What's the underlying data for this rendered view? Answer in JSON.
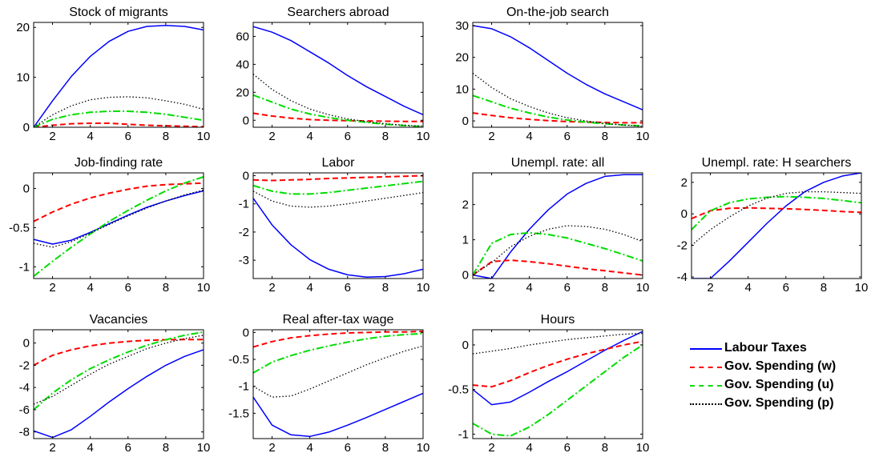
{
  "series_styles": [
    {
      "name": "Labour Taxes",
      "color": "#0000FF",
      "dash": "",
      "width": 1.5
    },
    {
      "name": "Gov. Spending (w)",
      "color": "#FF0000",
      "dash": "7,4",
      "width": 2
    },
    {
      "name": "Gov. Spending (u)",
      "color": "#00DD00",
      "dash": "9,3,2,3",
      "width": 2
    },
    {
      "name": "Gov. Spending (p)",
      "color": "#000000",
      "dash": "1.5,2.5",
      "width": 1.3
    }
  ],
  "chart_data": [
    {
      "type": "line",
      "title": "Stock of migrants",
      "x": [
        1,
        2,
        3,
        4,
        5,
        6,
        7,
        8,
        9,
        10
      ],
      "xlim": [
        1,
        10
      ],
      "ylim": [
        0,
        21
      ],
      "yticks": [
        0,
        10,
        20
      ],
      "xticks": [
        2,
        4,
        6,
        8,
        10
      ],
      "series": [
        {
          "name": "Labour Taxes",
          "values": [
            0,
            5.3,
            10.2,
            14.2,
            17.2,
            19.2,
            20.2,
            20.4,
            20.2,
            19.5
          ]
        },
        {
          "name": "Gov. Spending (w)",
          "values": [
            0,
            0.4,
            0.7,
            0.8,
            0.8,
            0.6,
            0.4,
            0.3,
            0.2,
            0.1
          ]
        },
        {
          "name": "Gov. Spending (u)",
          "values": [
            0,
            1.6,
            2.5,
            3.0,
            3.2,
            3.2,
            3.0,
            2.6,
            2.0,
            1.4
          ]
        },
        {
          "name": "Gov. Spending (p)",
          "values": [
            0,
            2.5,
            4.3,
            5.5,
            6.0,
            6.1,
            5.9,
            5.3,
            4.6,
            3.6
          ]
        }
      ]
    },
    {
      "type": "line",
      "title": "Searchers abroad",
      "x": [
        1,
        2,
        3,
        4,
        5,
        6,
        7,
        8,
        9,
        10
      ],
      "xlim": [
        1,
        10
      ],
      "ylim": [
        -5,
        70
      ],
      "yticks": [
        0,
        20,
        40,
        60
      ],
      "xticks": [
        2,
        4,
        6,
        8,
        10
      ],
      "series": [
        {
          "name": "Labour Taxes",
          "values": [
            67,
            63,
            57,
            49,
            41,
            32,
            24,
            17,
            10,
            4
          ]
        },
        {
          "name": "Gov. Spending (w)",
          "values": [
            5,
            3,
            1.5,
            0.5,
            0,
            -0.3,
            -0.5,
            -0.7,
            -0.8,
            -0.9
          ]
        },
        {
          "name": "Gov. Spending (u)",
          "values": [
            18,
            13,
            8,
            4.5,
            2,
            0,
            -1.5,
            -2.8,
            -3.8,
            -4.5
          ]
        },
        {
          "name": "Gov. Spending (p)",
          "values": [
            33,
            22,
            14,
            8,
            4,
            1,
            -1,
            -2.5,
            -3.5,
            -4.2
          ]
        }
      ]
    },
    {
      "type": "line",
      "title": "On-the-job search",
      "x": [
        1,
        2,
        3,
        4,
        5,
        6,
        7,
        8,
        9,
        10
      ],
      "xlim": [
        1,
        10
      ],
      "ylim": [
        -2,
        31
      ],
      "yticks": [
        0,
        10,
        20,
        30
      ],
      "xticks": [
        2,
        4,
        6,
        8,
        10
      ],
      "series": [
        {
          "name": "Labour Taxes",
          "values": [
            30,
            29,
            26.5,
            23,
            19,
            15,
            11.5,
            8.5,
            6,
            3.5
          ]
        },
        {
          "name": "Gov. Spending (w)",
          "values": [
            2.5,
            1.7,
            1,
            0.5,
            0.1,
            -0.2,
            -0.4,
            -0.5,
            -0.6,
            -0.6
          ]
        },
        {
          "name": "Gov. Spending (u)",
          "values": [
            8,
            6,
            4,
            2.5,
            1.2,
            0.3,
            -0.4,
            -0.9,
            -1.3,
            -1.6
          ]
        },
        {
          "name": "Gov. Spending (p)",
          "values": [
            15,
            10.5,
            7,
            4.5,
            2.5,
            1,
            0,
            -0.8,
            -1.3,
            -1.7
          ]
        }
      ]
    },
    {
      "type": "line",
      "title": "Job-finding rate",
      "x": [
        1,
        2,
        3,
        4,
        5,
        6,
        7,
        8,
        9,
        10
      ],
      "xlim": [
        1,
        10
      ],
      "ylim": [
        -1.15,
        0.2
      ],
      "yticks": [
        -1,
        -0.5,
        0
      ],
      "xticks": [
        2,
        4,
        6,
        8,
        10
      ],
      "series": [
        {
          "name": "Labour Taxes",
          "values": [
            -0.65,
            -0.71,
            -0.66,
            -0.56,
            -0.45,
            -0.34,
            -0.24,
            -0.16,
            -0.09,
            -0.03
          ]
        },
        {
          "name": "Gov. Spending (w)",
          "values": [
            -0.42,
            -0.3,
            -0.2,
            -0.12,
            -0.06,
            -0.01,
            0.03,
            0.05,
            0.06,
            0.07
          ]
        },
        {
          "name": "Gov. Spending (u)",
          "values": [
            -1.12,
            -0.93,
            -0.75,
            -0.58,
            -0.42,
            -0.28,
            -0.15,
            -0.03,
            0.07,
            0.15
          ]
        },
        {
          "name": "Gov. Spending (p)",
          "values": [
            -0.7,
            -0.75,
            -0.68,
            -0.57,
            -0.46,
            -0.35,
            -0.25,
            -0.16,
            -0.08,
            -0.02
          ]
        }
      ]
    },
    {
      "type": "line",
      "title": "Labor",
      "x": [
        1,
        2,
        3,
        4,
        5,
        6,
        7,
        8,
        9,
        10
      ],
      "xlim": [
        1,
        10
      ],
      "ylim": [
        -3.65,
        0.1
      ],
      "yticks": [
        -3,
        -2,
        -1,
        0
      ],
      "xticks": [
        2,
        4,
        6,
        8,
        10
      ],
      "series": [
        {
          "name": "Labour Taxes",
          "values": [
            -0.8,
            -1.75,
            -2.45,
            -2.98,
            -3.32,
            -3.52,
            -3.6,
            -3.58,
            -3.48,
            -3.32
          ]
        },
        {
          "name": "Gov. Spending (w)",
          "values": [
            -0.15,
            -0.17,
            -0.15,
            -0.13,
            -0.1,
            -0.08,
            -0.06,
            -0.04,
            -0.02,
            0
          ]
        },
        {
          "name": "Gov. Spending (u)",
          "values": [
            -0.35,
            -0.55,
            -0.65,
            -0.65,
            -0.6,
            -0.52,
            -0.44,
            -0.36,
            -0.28,
            -0.2
          ]
        },
        {
          "name": "Gov. Spending (p)",
          "values": [
            -0.55,
            -0.9,
            -1.08,
            -1.12,
            -1.08,
            -1.0,
            -0.9,
            -0.8,
            -0.7,
            -0.6
          ]
        }
      ]
    },
    {
      "type": "line",
      "title": "Unempl. rate: all",
      "x": [
        1,
        2,
        3,
        4,
        5,
        6,
        7,
        8,
        9,
        10
      ],
      "xlim": [
        1,
        10
      ],
      "ylim": [
        -0.1,
        2.9
      ],
      "yticks": [
        0,
        1,
        2
      ],
      "xticks": [
        2,
        4,
        6,
        8,
        10
      ],
      "series": [
        {
          "name": "Labour Taxes",
          "values": [
            0,
            -0.1,
            0.65,
            1.3,
            1.85,
            2.3,
            2.6,
            2.8,
            2.85,
            2.85
          ]
        },
        {
          "name": "Gov. Spending (w)",
          "values": [
            0,
            0.38,
            0.42,
            0.38,
            0.32,
            0.25,
            0.18,
            0.12,
            0.06,
            0
          ]
        },
        {
          "name": "Gov. Spending (u)",
          "values": [
            0,
            0.9,
            1.15,
            1.2,
            1.15,
            1.05,
            0.9,
            0.75,
            0.58,
            0.4
          ]
        },
        {
          "name": "Gov. Spending (p)",
          "values": [
            0,
            0.35,
            0.8,
            1.1,
            1.3,
            1.4,
            1.38,
            1.3,
            1.15,
            0.95
          ]
        }
      ]
    },
    {
      "type": "line",
      "title": "Unempl. rate: H searchers",
      "x": [
        1,
        2,
        3,
        4,
        5,
        6,
        7,
        8,
        9,
        10
      ],
      "xlim": [
        1,
        10
      ],
      "ylim": [
        -4.1,
        2.6
      ],
      "yticks": [
        -4,
        -2,
        0,
        2
      ],
      "xticks": [
        2,
        4,
        6,
        8,
        10
      ],
      "series": [
        {
          "name": "Labour Taxes",
          "values": [
            -4.1,
            -4.1,
            -3.0,
            -1.8,
            -0.6,
            0.5,
            1.4,
            2.0,
            2.4,
            2.6
          ]
        },
        {
          "name": "Gov. Spending (w)",
          "values": [
            -0.3,
            0.2,
            0.35,
            0.38,
            0.35,
            0.32,
            0.28,
            0.22,
            0.15,
            0.1
          ]
        },
        {
          "name": "Gov. Spending (u)",
          "values": [
            -1.0,
            0.2,
            0.7,
            0.95,
            1.05,
            1.1,
            1.05,
            0.98,
            0.85,
            0.7
          ]
        },
        {
          "name": "Gov. Spending (p)",
          "values": [
            -2.0,
            -1.0,
            -0.2,
            0.5,
            1.0,
            1.3,
            1.4,
            1.4,
            1.35,
            1.3
          ]
        }
      ]
    },
    {
      "type": "line",
      "title": "Vacancies",
      "x": [
        1,
        2,
        3,
        4,
        5,
        6,
        7,
        8,
        9,
        10
      ],
      "xlim": [
        1,
        10
      ],
      "ylim": [
        -8.6,
        1.2
      ],
      "yticks": [
        -8,
        -6,
        -4,
        -2,
        0
      ],
      "xticks": [
        2,
        4,
        6,
        8,
        10
      ],
      "series": [
        {
          "name": "Labour Taxes",
          "values": [
            -7.9,
            -8.5,
            -7.8,
            -6.6,
            -5.3,
            -4.1,
            -3.0,
            -2.0,
            -1.2,
            -0.6
          ]
        },
        {
          "name": "Gov. Spending (w)",
          "values": [
            -2.0,
            -1.1,
            -0.6,
            -0.25,
            0,
            0.15,
            0.25,
            0.3,
            0.32,
            0.32
          ]
        },
        {
          "name": "Gov. Spending (u)",
          "values": [
            -6.0,
            -4.5,
            -3.3,
            -2.3,
            -1.5,
            -0.8,
            -0.2,
            0.3,
            0.7,
            1.0
          ]
        },
        {
          "name": "Gov. Spending (p)",
          "values": [
            -5.5,
            -4.8,
            -3.8,
            -2.8,
            -1.9,
            -1.2,
            -0.5,
            0,
            0.4,
            0.7
          ]
        }
      ]
    },
    {
      "type": "line",
      "title": "Real after-tax wage",
      "x": [
        1,
        2,
        3,
        4,
        5,
        6,
        7,
        8,
        9,
        10
      ],
      "xlim": [
        1,
        10
      ],
      "ylim": [
        -1.97,
        0.05
      ],
      "yticks": [
        -1.5,
        -1,
        -0.5,
        0
      ],
      "xticks": [
        2,
        4,
        6,
        8,
        10
      ],
      "series": [
        {
          "name": "Labour Taxes",
          "values": [
            -1.2,
            -1.72,
            -1.9,
            -1.93,
            -1.85,
            -1.72,
            -1.58,
            -1.43,
            -1.28,
            -1.13
          ]
        },
        {
          "name": "Gov. Spending (w)",
          "values": [
            -0.27,
            -0.17,
            -0.1,
            -0.06,
            -0.03,
            -0.01,
            0,
            0.01,
            0.01,
            0.02
          ]
        },
        {
          "name": "Gov. Spending (u)",
          "values": [
            -0.75,
            -0.55,
            -0.43,
            -0.33,
            -0.25,
            -0.18,
            -0.12,
            -0.07,
            -0.04,
            -0.02
          ]
        },
        {
          "name": "Gov. Spending (p)",
          "values": [
            -1.0,
            -1.2,
            -1.18,
            -1.05,
            -0.9,
            -0.75,
            -0.6,
            -0.47,
            -0.35,
            -0.25
          ]
        }
      ]
    },
    {
      "type": "line",
      "title": "Hours",
      "x": [
        1,
        2,
        3,
        4,
        5,
        6,
        7,
        8,
        9,
        10
      ],
      "xlim": [
        1,
        10
      ],
      "ylim": [
        -1.05,
        0.17
      ],
      "yticks": [
        -1,
        -0.5,
        0
      ],
      "xticks": [
        2,
        4,
        6,
        8,
        10
      ],
      "series": [
        {
          "name": "Labour Taxes",
          "values": [
            -0.5,
            -0.67,
            -0.64,
            -0.53,
            -0.41,
            -0.3,
            -0.18,
            -0.06,
            0.05,
            0.15
          ]
        },
        {
          "name": "Gov. Spending (w)",
          "values": [
            -0.45,
            -0.47,
            -0.4,
            -0.31,
            -0.23,
            -0.16,
            -0.1,
            -0.05,
            0,
            0.04
          ]
        },
        {
          "name": "Gov. Spending (u)",
          "values": [
            -0.88,
            -1.0,
            -1.02,
            -0.92,
            -0.78,
            -0.62,
            -0.46,
            -0.3,
            -0.14,
            0
          ]
        },
        {
          "name": "Gov. Spending (p)",
          "values": [
            -0.1,
            -0.07,
            -0.04,
            0,
            0.03,
            0.06,
            0.08,
            0.1,
            0.12,
            0.13
          ]
        }
      ]
    }
  ],
  "legend": [
    {
      "label": "Labour Taxes"
    },
    {
      "label": "Gov. Spending (w)"
    },
    {
      "label": "Gov. Spending (u)"
    },
    {
      "label": "Gov. Spending (p)"
    }
  ]
}
